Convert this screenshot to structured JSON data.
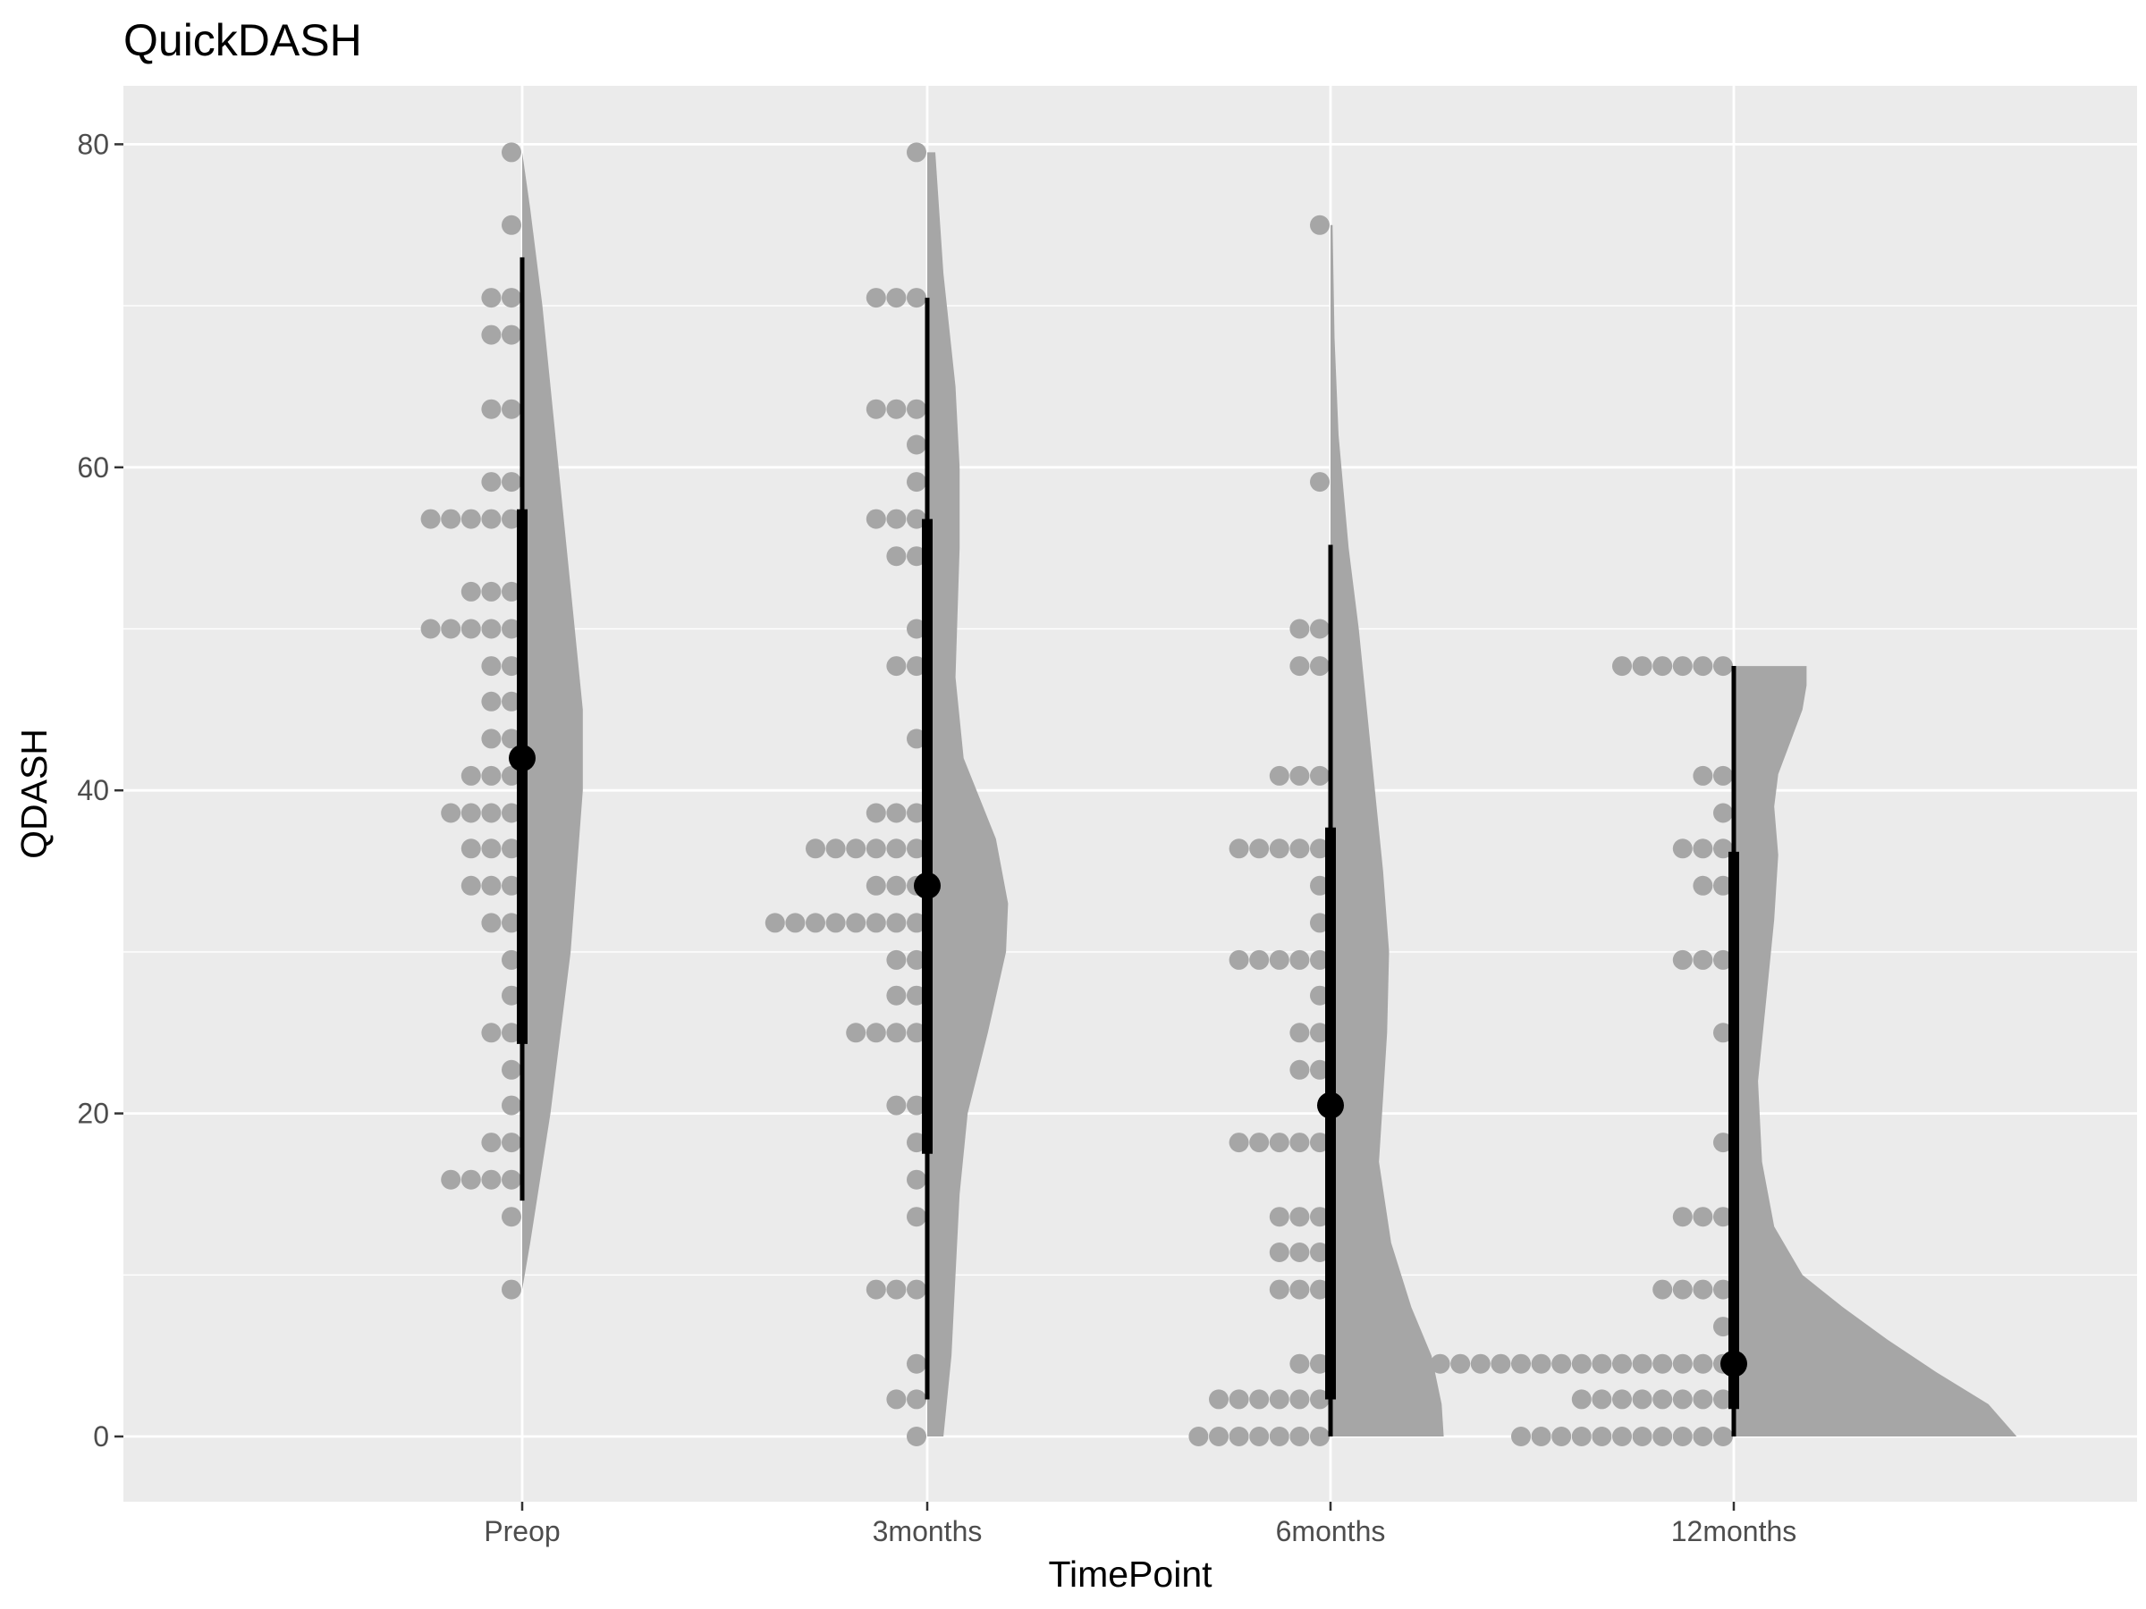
{
  "chart_data": {
    "type": "violin-dotplot",
    "title": "QuickDASH",
    "xlabel": "TimePoint",
    "ylabel": "QDASH",
    "categories": [
      "Preop",
      "3months",
      "6months",
      "12months"
    ],
    "ylim": [
      -4,
      83.5
    ],
    "yticks": [
      0,
      20,
      40,
      60,
      80
    ],
    "grid": true,
    "colors": {
      "panel": "#ebebeb",
      "grid": "#ffffff",
      "dots": "#a6a6a6",
      "violin": "#a6a6a6",
      "summary": "#000000"
    },
    "groups": [
      {
        "name": "Preop",
        "dots": [
          [
            79.5,
            1
          ],
          [
            75,
            1
          ],
          [
            70.5,
            2
          ],
          [
            68.2,
            2
          ],
          [
            63.6,
            2
          ],
          [
            59.1,
            2
          ],
          [
            56.8,
            5
          ],
          [
            52.3,
            3
          ],
          [
            50,
            5
          ],
          [
            47.7,
            2
          ],
          [
            45.5,
            2
          ],
          [
            43.2,
            2
          ],
          [
            40.9,
            3
          ],
          [
            38.6,
            4
          ],
          [
            36.4,
            3
          ],
          [
            34.1,
            3
          ],
          [
            31.8,
            2
          ],
          [
            29.5,
            1
          ],
          [
            27.3,
            1
          ],
          [
            25,
            2
          ],
          [
            22.7,
            1
          ],
          [
            20.5,
            1
          ],
          [
            18.2,
            2
          ],
          [
            15.9,
            4
          ],
          [
            13.6,
            1
          ],
          [
            9.1,
            1
          ]
        ],
        "median": 42,
        "inner": [
          24.3,
          57.4
        ],
        "outer": [
          14.6,
          73
        ],
        "violin": [
          [
            9.1,
            0
          ],
          [
            12,
            0.02
          ],
          [
            20,
            0.07
          ],
          [
            30,
            0.12
          ],
          [
            40,
            0.15
          ],
          [
            45,
            0.15
          ],
          [
            50,
            0.13
          ],
          [
            60,
            0.09
          ],
          [
            70,
            0.05
          ],
          [
            76,
            0.02
          ],
          [
            79.5,
            0
          ]
        ]
      },
      {
        "name": "3months",
        "dots": [
          [
            79.5,
            1
          ],
          [
            70.5,
            3
          ],
          [
            63.6,
            3
          ],
          [
            61.4,
            1
          ],
          [
            59.1,
            1
          ],
          [
            56.8,
            3
          ],
          [
            54.5,
            2
          ],
          [
            50,
            1
          ],
          [
            47.7,
            2
          ],
          [
            43.2,
            1
          ],
          [
            38.6,
            3
          ],
          [
            36.4,
            6
          ],
          [
            34.1,
            3
          ],
          [
            31.8,
            8
          ],
          [
            29.5,
            2
          ],
          [
            27.3,
            2
          ],
          [
            25,
            4
          ],
          [
            20.5,
            2
          ],
          [
            18.2,
            1
          ],
          [
            15.9,
            1
          ],
          [
            13.6,
            1
          ],
          [
            9.1,
            3
          ],
          [
            4.5,
            1
          ],
          [
            2.3,
            2
          ],
          [
            0,
            1
          ]
        ],
        "median": 34.1,
        "inner": [
          17.5,
          56.8
        ],
        "outer": [
          2.3,
          70.5
        ],
        "violin": [
          [
            0,
            0.04
          ],
          [
            5,
            0.06
          ],
          [
            10,
            0.07
          ],
          [
            15,
            0.08
          ],
          [
            20,
            0.1
          ],
          [
            25,
            0.15
          ],
          [
            30,
            0.195
          ],
          [
            33,
            0.2
          ],
          [
            37,
            0.17
          ],
          [
            42,
            0.09
          ],
          [
            47,
            0.07
          ],
          [
            55,
            0.08
          ],
          [
            60,
            0.08
          ],
          [
            65,
            0.07
          ],
          [
            72,
            0.04
          ],
          [
            79.5,
            0.02
          ]
        ]
      },
      {
        "name": "6months",
        "dots": [
          [
            75,
            1
          ],
          [
            59.1,
            1
          ],
          [
            50,
            2
          ],
          [
            47.7,
            2
          ],
          [
            40.9,
            3
          ],
          [
            36.4,
            5
          ],
          [
            34.1,
            1
          ],
          [
            31.8,
            1
          ],
          [
            29.5,
            5
          ],
          [
            27.3,
            1
          ],
          [
            25,
            2
          ],
          [
            22.7,
            2
          ],
          [
            18.2,
            5
          ],
          [
            13.6,
            3
          ],
          [
            11.4,
            3
          ],
          [
            9.1,
            3
          ],
          [
            4.5,
            2
          ],
          [
            2.3,
            6
          ],
          [
            0,
            7
          ]
        ],
        "median": 20.5,
        "inner": [
          2.3,
          37.7
        ],
        "outer": [
          0,
          55.2
        ],
        "violin": [
          [
            0,
            0.28
          ],
          [
            2,
            0.275
          ],
          [
            5,
            0.25
          ],
          [
            8,
            0.2
          ],
          [
            12,
            0.15
          ],
          [
            17,
            0.12
          ],
          [
            21,
            0.13
          ],
          [
            25,
            0.14
          ],
          [
            30,
            0.145
          ],
          [
            35,
            0.13
          ],
          [
            40,
            0.11
          ],
          [
            45,
            0.09
          ],
          [
            50,
            0.07
          ],
          [
            55,
            0.045
          ],
          [
            62,
            0.02
          ],
          [
            68,
            0.01
          ],
          [
            75,
            0.005
          ]
        ]
      },
      {
        "name": "12months",
        "dots": [
          [
            47.7,
            6
          ],
          [
            40.9,
            2
          ],
          [
            38.6,
            1
          ],
          [
            36.4,
            3
          ],
          [
            34.1,
            2
          ],
          [
            29.5,
            3
          ],
          [
            25,
            1
          ],
          [
            18.2,
            1
          ],
          [
            13.6,
            3
          ],
          [
            9.1,
            4
          ],
          [
            6.8,
            1
          ],
          [
            4.5,
            18
          ],
          [
            2.3,
            8
          ],
          [
            0,
            11
          ]
        ],
        "median": 4.5,
        "inner": [
          1.7,
          36.2
        ],
        "outer": [
          0,
          47.7
        ],
        "violin": [
          [
            0,
            0.7
          ],
          [
            2,
            0.63
          ],
          [
            4,
            0.5
          ],
          [
            6,
            0.38
          ],
          [
            8,
            0.27
          ],
          [
            10,
            0.17
          ],
          [
            13,
            0.1
          ],
          [
            17,
            0.07
          ],
          [
            22,
            0.06
          ],
          [
            27,
            0.08
          ],
          [
            32,
            0.1
          ],
          [
            36,
            0.11
          ],
          [
            39,
            0.1
          ],
          [
            41,
            0.11
          ],
          [
            43,
            0.14
          ],
          [
            45,
            0.17
          ],
          [
            46.5,
            0.18
          ],
          [
            47.7,
            0.18
          ]
        ]
      }
    ]
  }
}
